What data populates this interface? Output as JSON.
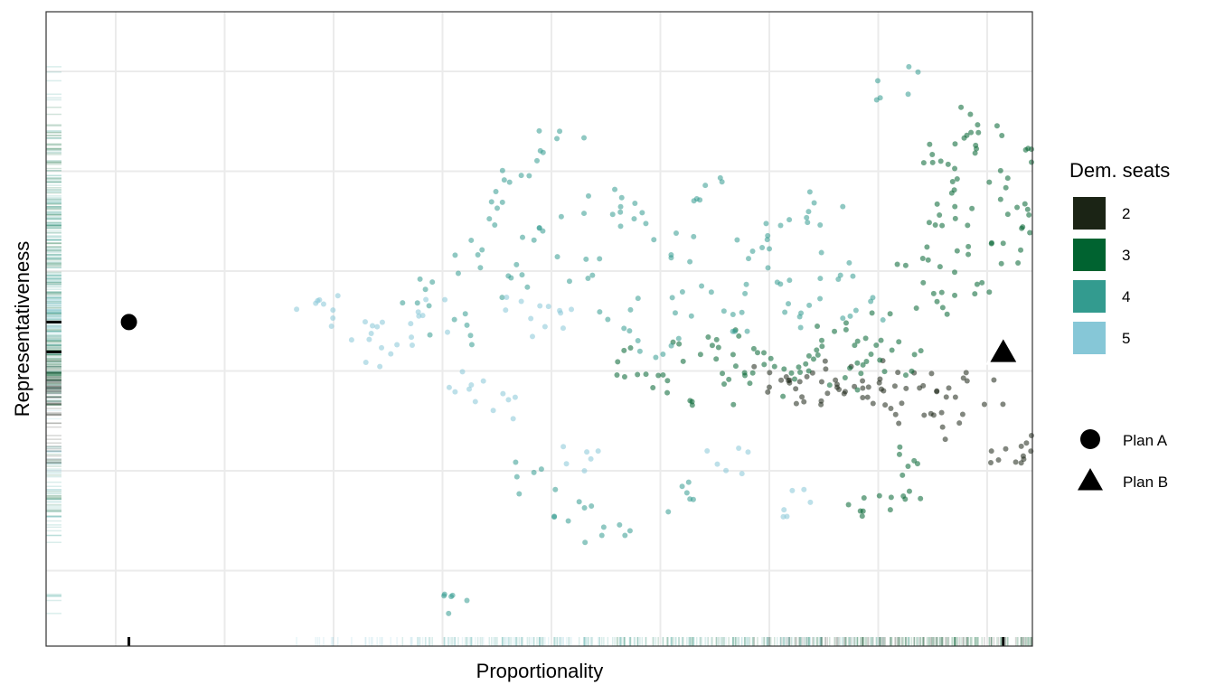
{
  "chart_data": {
    "type": "scatter",
    "title": "",
    "xlabel": "Proportionality",
    "ylabel": "Representativeness",
    "grid": true,
    "x_tick_labels_shown": false,
    "y_tick_labels_shown": false,
    "legend_position": "right",
    "color_legend": {
      "title": "Dem. seats",
      "items": [
        {
          "label": "2",
          "color": "#1b2415"
        },
        {
          "label": "3",
          "color": "#006330"
        },
        {
          "label": "4",
          "color": "#339b8f"
        },
        {
          "label": "5",
          "color": "#86c7d7"
        }
      ]
    },
    "shape_legend": {
      "items": [
        {
          "label": "Plan A",
          "shape": "circle"
        },
        {
          "label": "Plan B",
          "shape": "triangle"
        }
      ]
    },
    "highlighted_plans": [
      {
        "name": "Plan A",
        "shape": "circle",
        "x": 0.04,
        "y": 0.51
      },
      {
        "name": "Plan B",
        "shape": "triangle",
        "x": 0.97,
        "y": 0.46
      }
    ],
    "series": [
      {
        "name": "2",
        "color": "#1b2415",
        "points": [
          [
            0.73,
            0.41
          ],
          [
            0.74,
            0.4
          ],
          [
            0.76,
            0.42
          ],
          [
            0.78,
            0.39
          ],
          [
            0.8,
            0.41
          ],
          [
            0.82,
            0.4
          ],
          [
            0.84,
            0.38
          ],
          [
            0.86,
            0.42
          ],
          [
            0.88,
            0.37
          ],
          [
            0.9,
            0.4
          ],
          [
            0.92,
            0.33
          ],
          [
            0.95,
            0.4
          ],
          [
            0.97,
            0.28
          ],
          [
            0.98,
            0.29
          ]
        ]
      },
      {
        "name": "3",
        "color": "#006330",
        "points": [
          [
            0.56,
            0.44
          ],
          [
            0.6,
            0.42
          ],
          [
            0.64,
            0.46
          ],
          [
            0.66,
            0.4
          ],
          [
            0.68,
            0.47
          ],
          [
            0.7,
            0.43
          ],
          [
            0.72,
            0.45
          ],
          [
            0.74,
            0.41
          ],
          [
            0.76,
            0.44
          ],
          [
            0.78,
            0.48
          ],
          [
            0.8,
            0.42
          ],
          [
            0.82,
            0.46
          ],
          [
            0.84,
            0.5
          ],
          [
            0.86,
            0.45
          ],
          [
            0.88,
            0.6
          ],
          [
            0.89,
            0.55
          ],
          [
            0.9,
            0.75
          ],
          [
            0.91,
            0.65
          ],
          [
            0.92,
            0.7
          ],
          [
            0.93,
            0.8
          ],
          [
            0.94,
            0.58
          ],
          [
            0.95,
            0.85
          ],
          [
            0.96,
            0.72
          ],
          [
            0.97,
            0.62
          ],
          [
            0.98,
            0.68
          ],
          [
            0.99,
            0.78
          ],
          [
            0.82,
            0.2
          ],
          [
            0.86,
            0.21
          ],
          [
            0.9,
            0.8
          ],
          [
            0.88,
            0.28
          ]
        ]
      },
      {
        "name": "4",
        "color": "#339b8f",
        "points": [
          [
            0.35,
            0.56
          ],
          [
            0.38,
            0.5
          ],
          [
            0.4,
            0.62
          ],
          [
            0.42,
            0.7
          ],
          [
            0.44,
            0.58
          ],
          [
            0.46,
            0.76
          ],
          [
            0.48,
            0.66
          ],
          [
            0.5,
            0.81
          ],
          [
            0.52,
            0.6
          ],
          [
            0.54,
            0.72
          ],
          [
            0.56,
            0.52
          ],
          [
            0.58,
            0.68
          ],
          [
            0.6,
            0.48
          ],
          [
            0.62,
            0.64
          ],
          [
            0.64,
            0.55
          ],
          [
            0.66,
            0.73
          ],
          [
            0.68,
            0.5
          ],
          [
            0.7,
            0.62
          ],
          [
            0.72,
            0.57
          ],
          [
            0.74,
            0.66
          ],
          [
            0.76,
            0.53
          ],
          [
            0.78,
            0.7
          ],
          [
            0.8,
            0.6
          ],
          [
            0.82,
            0.54
          ],
          [
            0.47,
            0.25
          ],
          [
            0.51,
            0.19
          ],
          [
            0.55,
            0.15
          ],
          [
            0.4,
            0.05
          ],
          [
            0.62,
            0.22
          ],
          [
            0.86,
            0.91
          ]
        ]
      },
      {
        "name": "5",
        "color": "#86c7d7",
        "points": [
          [
            0.24,
            0.54
          ],
          [
            0.28,
            0.52
          ],
          [
            0.3,
            0.46
          ],
          [
            0.32,
            0.5
          ],
          [
            0.36,
            0.52
          ],
          [
            0.4,
            0.42
          ],
          [
            0.43,
            0.37
          ],
          [
            0.46,
            0.53
          ],
          [
            0.49,
            0.51
          ],
          [
            0.52,
            0.28
          ],
          [
            0.68,
            0.28
          ],
          [
            0.76,
            0.2
          ]
        ]
      }
    ]
  }
}
